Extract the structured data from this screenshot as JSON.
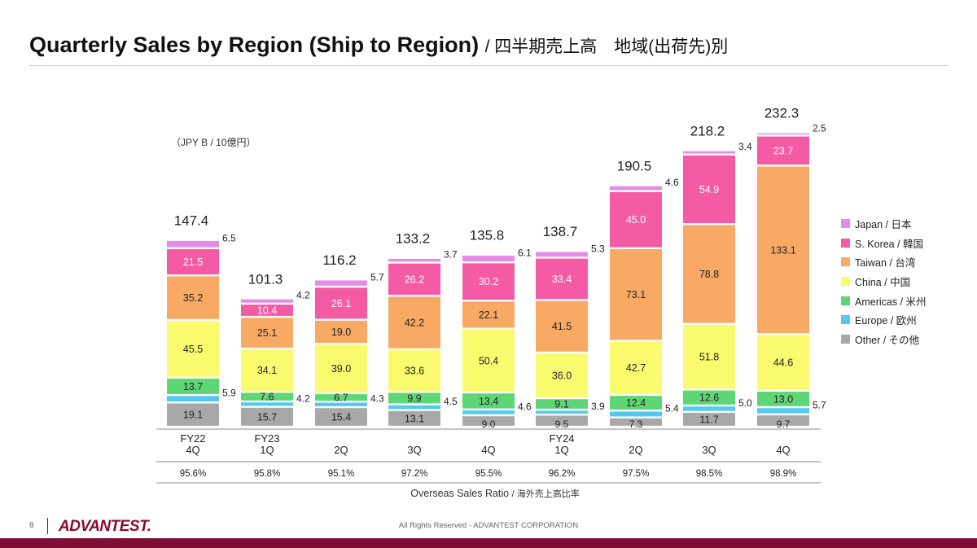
{
  "header": {
    "title": "Quarterly Sales by Region (Ship to Region)",
    "subtitle": "/ 四半期売上高　地域(出荷先)別"
  },
  "chart_data": {
    "type": "bar",
    "stacked": true,
    "unit": "（JPY B / 10億円）",
    "categories": [
      [
        "FY22",
        "4Q"
      ],
      [
        "FY23",
        "1Q"
      ],
      [
        "",
        "2Q"
      ],
      [
        "",
        "3Q"
      ],
      [
        "",
        "4Q"
      ],
      [
        "FY24",
        "1Q"
      ],
      [
        "",
        "2Q"
      ],
      [
        "",
        "3Q"
      ],
      [
        "",
        "4Q"
      ]
    ],
    "series": [
      {
        "name": "Other / その他",
        "color": "#a8a8a8",
        "values": [
          "19.1",
          "15.7",
          "15.4",
          "13.1",
          "9.0",
          "9.5",
          "7.3",
          "11.7",
          "9.7"
        ]
      },
      {
        "name": "Europe / 欧州",
        "color": "#55c8f0",
        "values": [
          "5.9",
          "4.2",
          "4.3",
          "4.5",
          "4.6",
          "3.9",
          "5.4",
          "5.0",
          "5.7"
        ]
      },
      {
        "name": "Americas / 米州",
        "color": "#5fd675",
        "values": [
          "13.7",
          "7.6",
          "6.7",
          "9.9",
          "13.4",
          "9.1",
          "12.4",
          "12.6",
          "13.0"
        ]
      },
      {
        "name": "China / 中国",
        "color": "#fafa6e",
        "values": [
          "45.5",
          "34.1",
          "39.0",
          "33.6",
          "50.4",
          "36.0",
          "42.7",
          "51.8",
          "44.6"
        ]
      },
      {
        "name": "Taiwan / 台湾",
        "color": "#f8a964",
        "values": [
          "35.2",
          "25.1",
          "19.0",
          "42.2",
          "22.1",
          "41.5",
          "73.1",
          "78.8",
          "133.1"
        ]
      },
      {
        "name": "S. Korea / 韓国",
        "color": "#f55aa4",
        "values": [
          "21.5",
          "10.4",
          "26.1",
          "26.2",
          "30.2",
          "33.4",
          "45.0",
          "54.9",
          "23.7"
        ]
      },
      {
        "name": "Japan / 日本",
        "color": "#e58ce6",
        "values": [
          "6.5",
          "4.2",
          "5.7",
          "3.7",
          "6.1",
          "5.3",
          "4.6",
          "3.4",
          "2.5"
        ]
      }
    ],
    "totals": [
      "147.4",
      "101.3",
      "116.2",
      "133.2",
      "135.8",
      "138.7",
      "190.5",
      "218.2",
      "232.3"
    ],
    "overseas_ratio": [
      "95.6%",
      "95.8%",
      "95.1%",
      "97.2%",
      "95.5%",
      "96.2%",
      "97.5%",
      "98.5%",
      "98.9%"
    ],
    "ratio_caption": "Overseas Sales Ratio",
    "ratio_caption_jp": "/ 海外売上高比率",
    "legend_order": [
      "Japan / 日本",
      "S. Korea / 韓国",
      "Taiwan / 台湾",
      "China / 中国",
      "Americas / 米州",
      "Europe / 欧州",
      "Other / その他"
    ],
    "legend_position": "right"
  },
  "footer": {
    "page_number": "8",
    "logo_text": "ADVANTEST.",
    "copyright": "All Rights Reserved - ADVANTEST CORPORATION"
  }
}
